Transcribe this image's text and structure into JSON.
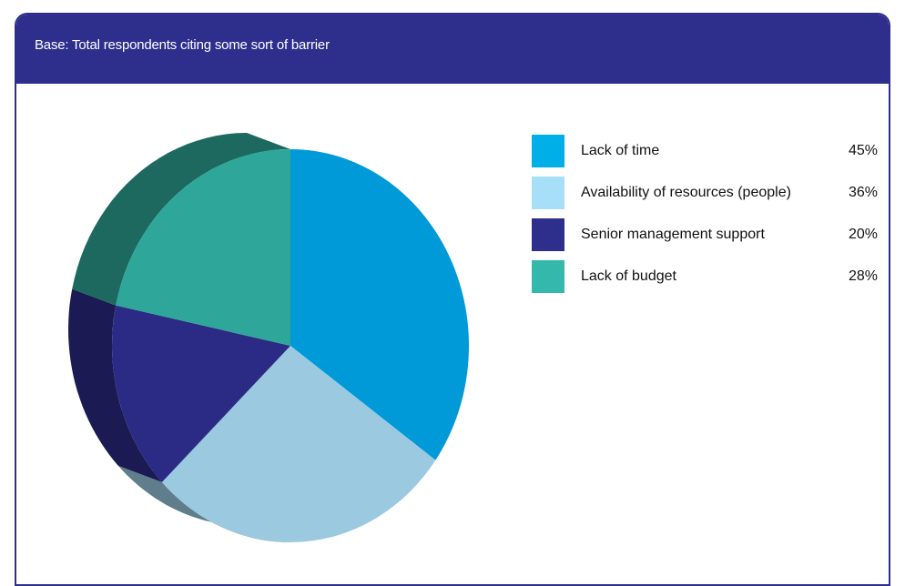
{
  "panel": {
    "base_text": "Base: Total respondents citing some sort of barrier",
    "header_color": "#2e2f8c"
  },
  "chart_data": {
    "type": "pie",
    "title": "",
    "categories": [
      "Lack of time",
      "Availability of resources (people)",
      "Senior management support",
      "Lack of budget"
    ],
    "values": [
      45,
      36,
      20,
      28
    ],
    "value_labels": [
      "45%",
      "36%",
      "20%",
      "28%"
    ],
    "units": "%",
    "colors": [
      "#009ad8",
      "#9ac9e0",
      "#2b2a85",
      "#2ea79a"
    ],
    "legend_colors": [
      "#00aee8",
      "#a8dff8",
      "#2e2f8c",
      "#34b8ac"
    ],
    "style": "3d-tilted",
    "legend_position": "right"
  }
}
